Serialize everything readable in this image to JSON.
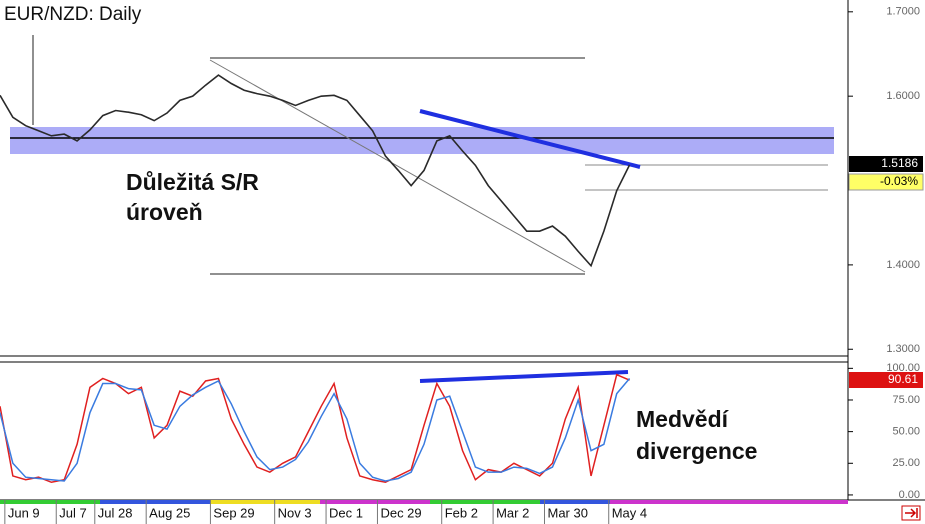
{
  "chart_data": [
    {
      "type": "line",
      "title": "EUR/NZD: Daily",
      "x": [
        -1,
        0,
        1,
        2,
        3,
        4,
        5,
        6,
        7,
        8,
        9,
        10,
        11,
        12,
        13,
        14,
        15,
        16,
        17,
        18,
        19,
        20,
        21,
        22,
        23,
        24,
        25,
        26,
        27,
        28,
        29,
        30,
        31,
        32,
        33,
        34,
        35,
        36,
        37,
        38,
        39,
        40,
        41,
        42,
        43,
        44,
        45,
        46,
        47,
        48
      ],
      "values": [
        1.601,
        1.575,
        1.565,
        1.559,
        1.553,
        1.555,
        1.547,
        1.56,
        1.577,
        1.583,
        1.581,
        1.578,
        1.571,
        1.58,
        1.595,
        1.6,
        1.613,
        1.625,
        1.615,
        1.607,
        1.603,
        1.6,
        1.595,
        1.589,
        1.595,
        1.6,
        1.601,
        1.595,
        1.577,
        1.559,
        1.529,
        1.512,
        1.494,
        1.512,
        1.547,
        1.553,
        1.535,
        1.518,
        1.494,
        1.476,
        1.458,
        1.44,
        1.44,
        1.446,
        1.434,
        1.416,
        1.399,
        1.44,
        1.488,
        1.5186
      ],
      "color": "#2a2a2a",
      "xlim": [
        -1,
        65
      ],
      "xticks": [
        {
          "value": 0,
          "label": "Jun 9"
        },
        {
          "value": 4,
          "label": "Jul 7"
        },
        {
          "value": 7,
          "label": "Jul 28"
        },
        {
          "value": 11,
          "label": "Aug 25"
        },
        {
          "value": 16,
          "label": "Sep 29"
        },
        {
          "value": 21,
          "label": "Nov 3"
        },
        {
          "value": 25,
          "label": "Dec 1"
        },
        {
          "value": 29,
          "label": "Dec 29"
        },
        {
          "value": 34,
          "label": "Feb 2"
        },
        {
          "value": 38,
          "label": "Mar 2"
        },
        {
          "value": 42,
          "label": "Mar 30"
        },
        {
          "value": 47,
          "label": "May 4"
        }
      ],
      "ylim": [
        1.292,
        1.714
      ],
      "yticks": [
        {
          "value": 1.3,
          "label": "1.3000"
        },
        {
          "value": 1.4,
          "label": "1.4000"
        },
        {
          "value": 1.6,
          "label": "1.6000"
        },
        {
          "value": 1.7,
          "label": "1.7000"
        }
      ],
      "last_price": 1.5186,
      "change": {
        "value": -0.03,
        "label": "-0.03%"
      },
      "sr_label": [
        "Důležitá S/R",
        "úroveň"
      ]
    },
    {
      "type": "line",
      "x": [
        -1,
        0,
        1,
        2,
        3,
        4,
        5,
        6,
        7,
        8,
        9,
        10,
        11,
        12,
        13,
        14,
        15,
        16,
        17,
        18,
        19,
        20,
        21,
        22,
        23,
        24,
        25,
        26,
        27,
        28,
        29,
        30,
        31,
        32,
        33,
        34,
        35,
        36,
        37,
        38,
        39,
        40,
        41,
        42,
        43,
        44,
        45,
        46,
        47,
        48
      ],
      "series": [
        {
          "color": "#e02020",
          "values": [
            70,
            15,
            12,
            14,
            10,
            12,
            40,
            85,
            92,
            88,
            80,
            85,
            45,
            55,
            82,
            78,
            90,
            92,
            60,
            40,
            22,
            18,
            25,
            30,
            50,
            70,
            88,
            45,
            15,
            12,
            10,
            15,
            20,
            55,
            88,
            70,
            35,
            12,
            20,
            18,
            25,
            20,
            15,
            25,
            60,
            85,
            15,
            55,
            95,
            90.61
          ]
        },
        {
          "color": "#3a7be0",
          "values": [
            65,
            25,
            14,
            13,
            12,
            11,
            25,
            65,
            88,
            88,
            84,
            83,
            55,
            52,
            70,
            79,
            85,
            90,
            72,
            50,
            30,
            20,
            22,
            28,
            42,
            62,
            80,
            60,
            25,
            14,
            11,
            13,
            18,
            40,
            75,
            78,
            50,
            22,
            18,
            18,
            22,
            21,
            17,
            22,
            45,
            75,
            35,
            40,
            80,
            92
          ]
        }
      ],
      "xlim": [
        -1,
        65
      ],
      "ylim": [
        -4,
        105
      ],
      "yticks": [
        {
          "value": 0,
          "label": "0.00"
        },
        {
          "value": 25,
          "label": "25.00"
        },
        {
          "value": 50,
          "label": "50.00"
        },
        {
          "value": 75,
          "label": "75.00"
        },
        {
          "value": 100,
          "label": "100.00"
        }
      ],
      "last_value_label": "90.61",
      "divergence_label": [
        "Medvědí",
        "divergence"
      ]
    }
  ]
}
